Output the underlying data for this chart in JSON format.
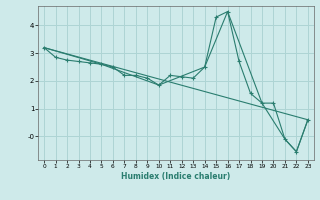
{
  "xlabel": "Humidex (Indice chaleur)",
  "bg_color": "#ceeaea",
  "grid_color": "#aed4d4",
  "line_color": "#2a7d6f",
  "xlim": [
    -0.5,
    23.5
  ],
  "ylim": [
    -0.85,
    4.7
  ],
  "xticks": [
    0,
    1,
    2,
    3,
    4,
    5,
    6,
    7,
    8,
    9,
    10,
    11,
    12,
    13,
    14,
    15,
    16,
    17,
    18,
    19,
    20,
    21,
    22,
    23
  ],
  "yticks": [
    0,
    1,
    2,
    3,
    4
  ],
  "ytick_labels": [
    "-0",
    "1",
    "2",
    "3",
    "4"
  ],
  "series1_x": [
    0,
    1,
    2,
    3,
    4,
    5,
    6,
    7,
    8,
    9,
    10,
    11,
    12,
    13,
    14,
    15,
    16,
    17,
    18,
    19,
    20,
    21,
    22,
    23
  ],
  "series1_y": [
    3.2,
    2.85,
    2.75,
    2.7,
    2.65,
    2.6,
    2.5,
    2.2,
    2.2,
    2.1,
    1.85,
    2.2,
    2.15,
    2.1,
    2.5,
    4.3,
    4.5,
    2.7,
    1.55,
    1.2,
    1.2,
    -0.1,
    -0.55,
    0.6
  ],
  "series2_x": [
    0,
    5,
    10,
    14,
    16,
    19,
    21,
    22,
    23
  ],
  "series2_y": [
    3.2,
    2.6,
    1.85,
    2.5,
    4.5,
    1.2,
    -0.1,
    -0.55,
    0.6
  ],
  "series3_x": [
    0,
    23
  ],
  "series3_y": [
    3.2,
    0.6
  ]
}
